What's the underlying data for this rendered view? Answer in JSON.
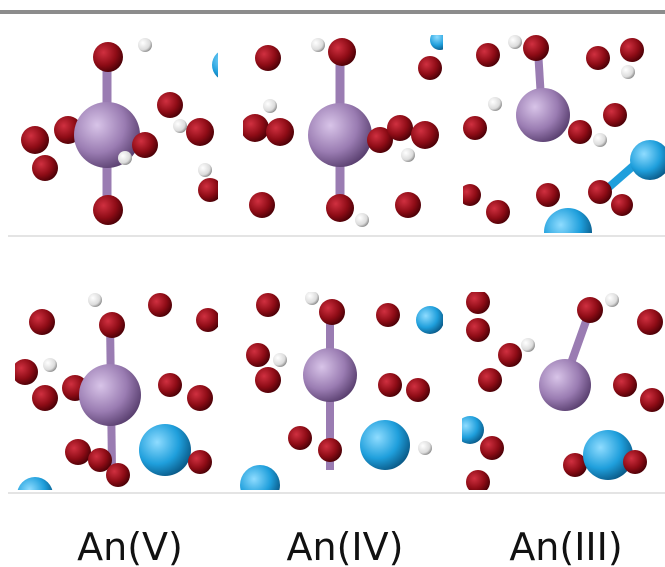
{
  "labels": [
    "An(V)",
    "An(IV)",
    "An(III)"
  ]
}
